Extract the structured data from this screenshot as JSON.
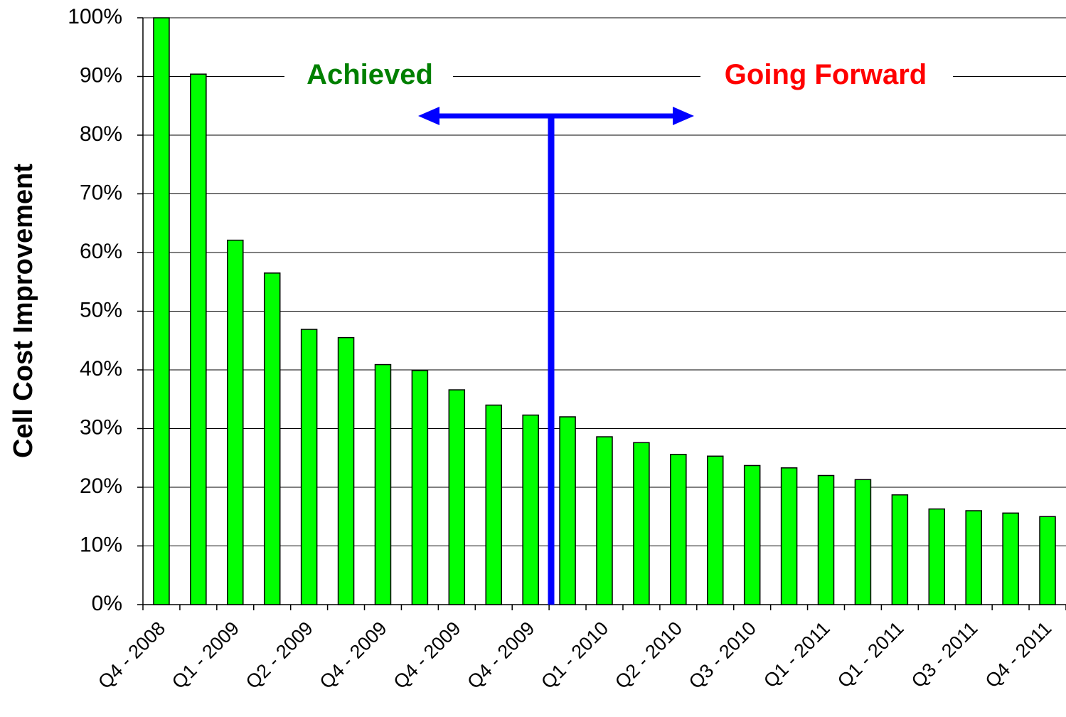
{
  "chart_data": {
    "type": "bar",
    "y_label": "Cell Cost Improvement",
    "annotations": [
      "Achieved",
      "Going Forward"
    ],
    "categories": [
      "Q4 - 2008",
      null,
      "Q1 - 2009",
      null,
      "Q2 - 2009",
      null,
      "Q4 - 2009",
      null,
      "Q4 - 2009",
      null,
      "Q4 - 2009",
      null,
      "Q1 - 2010",
      null,
      "Q2 - 2010",
      null,
      "Q3 - 2010",
      null,
      "Q1 - 2011",
      null,
      "Q1 - 2011",
      null,
      "Q3 - 2011",
      null,
      "Q4 - 2011"
    ],
    "values": [
      100,
      90.4,
      62.1,
      56.5,
      46.9,
      45.5,
      40.9,
      39.9,
      36.6,
      34,
      32.3,
      32,
      28.6,
      27.6,
      25.6,
      25.3,
      23.7,
      23.3,
      22,
      21.3,
      18.7,
      16.3,
      16,
      15.6,
      15
    ],
    "color": "#00ff00",
    "ylim": [
      0,
      100
    ],
    "yticks": [
      {
        "value": 0,
        "label": "0%"
      },
      {
        "value": 10,
        "label": "10%"
      },
      {
        "value": 20,
        "label": "20%"
      },
      {
        "value": 30,
        "label": "30%"
      },
      {
        "value": 40,
        "label": "40%"
      },
      {
        "value": 50,
        "label": "50%"
      },
      {
        "value": 60,
        "label": "60%"
      },
      {
        "value": 70,
        "label": "70%"
      },
      {
        "value": 80,
        "label": "80%"
      },
      {
        "value": 90,
        "label": "90%"
      },
      {
        "value": 100,
        "label": "100%"
      }
    ],
    "grid": true
  }
}
